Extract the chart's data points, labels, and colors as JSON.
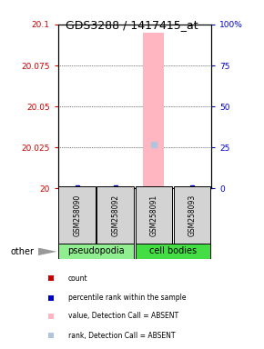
{
  "title": "GDS3288 / 1417415_at",
  "samples": [
    "GSM258090",
    "GSM258092",
    "GSM258091",
    "GSM258093"
  ],
  "ylim_left": [
    20.0,
    20.1
  ],
  "ylim_right": [
    0,
    100
  ],
  "yticks_left": [
    20.0,
    20.025,
    20.05,
    20.075,
    20.1
  ],
  "yticks_right": [
    0,
    25,
    50,
    75,
    100
  ],
  "ytick_labels_left": [
    "20",
    "20.025",
    "20.05",
    "20.075",
    "20.1"
  ],
  "ytick_labels_right": [
    "0",
    "25",
    "50",
    "75",
    "100%"
  ],
  "left_tick_color": "#CC0000",
  "right_tick_color": "#0000CC",
  "bar_absent_color": "#FFB6C1",
  "rank_absent_color": "#B0C4DE",
  "blue_marker_color": "#0000CC",
  "bar_values": [
    null,
    null,
    20.095,
    null
  ],
  "rank_values": [
    null,
    null,
    27,
    null
  ],
  "percentile_values": [
    1,
    1,
    null,
    1
  ],
  "sample_box_color": "#D3D3D3",
  "pseudopodia_color": "#90EE90",
  "cell_bodies_color": "#44DD44",
  "legend_items": [
    {
      "color": "#CC0000",
      "label": "count"
    },
    {
      "color": "#0000CC",
      "label": "percentile rank within the sample"
    },
    {
      "color": "#FFB6C1",
      "label": "value, Detection Call = ABSENT"
    },
    {
      "color": "#B0C4DE",
      "label": "rank, Detection Call = ABSENT"
    }
  ]
}
